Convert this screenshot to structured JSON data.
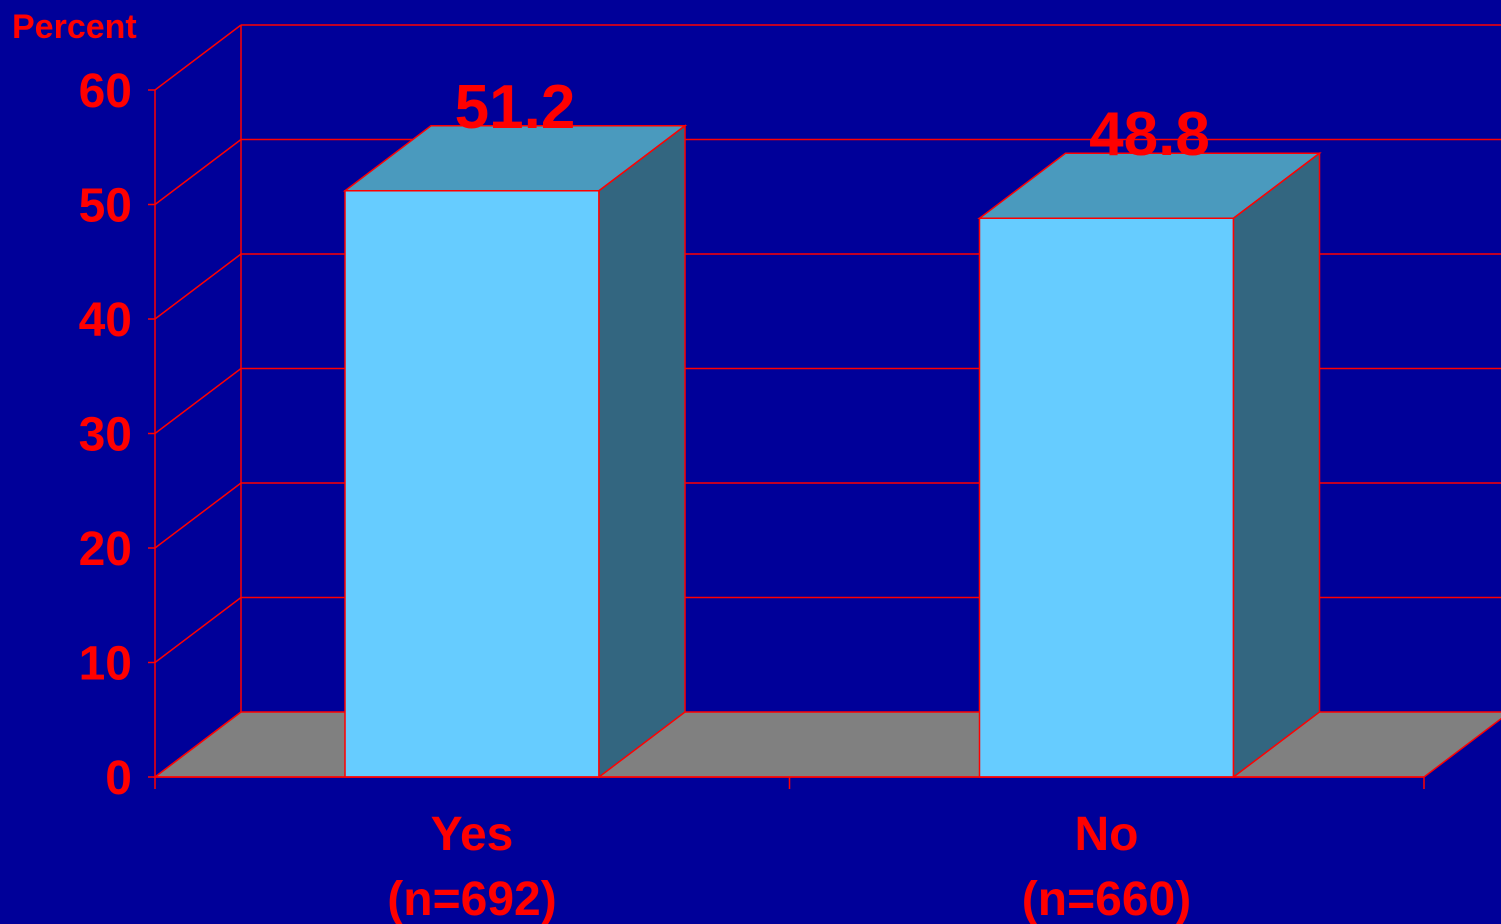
{
  "chart_data": {
    "type": "bar",
    "ylabel": "Percent",
    "categories": [
      {
        "name": "Yes",
        "n": "(n=692)"
      },
      {
        "name": "No",
        "n": "(n=660)"
      }
    ],
    "values": [
      51.2,
      48.8
    ],
    "value_labels": [
      "51.2",
      "48.8"
    ],
    "yticks": [
      "0",
      "10",
      "20",
      "30",
      "40",
      "50",
      "60"
    ],
    "ylim": [
      0,
      60
    ],
    "grid": true,
    "style": "3d",
    "colors": {
      "background": "#000099",
      "text": "#ff0000",
      "grid": "#ff0000",
      "floor": "#808080",
      "bar_front": "#66ccff",
      "bar_top": "#4a9abe",
      "bar_side": "#336680"
    }
  }
}
